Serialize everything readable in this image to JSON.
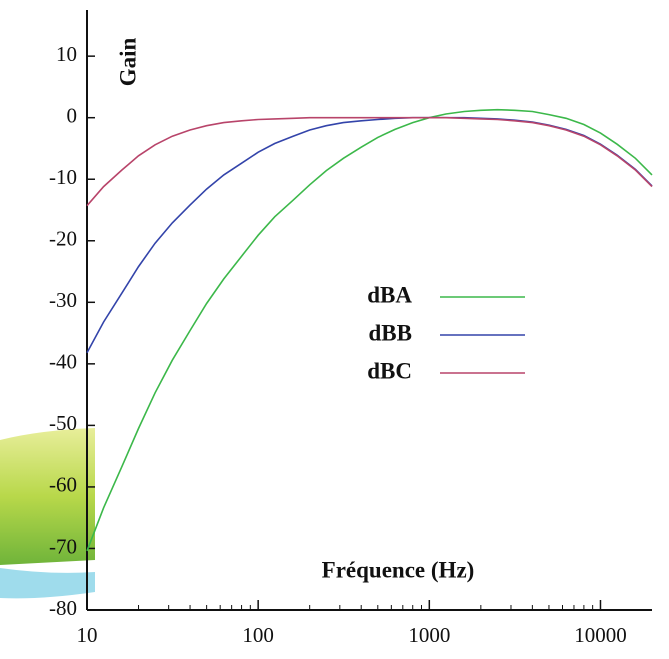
{
  "chart_data": {
    "type": "line",
    "ylabel": "Gain",
    "xlabel": "Fréquence (Hz)",
    "xscale": "log",
    "legend": "center",
    "x": [
      10,
      12.5,
      16,
      20,
      25,
      31.5,
      40,
      50,
      63,
      80,
      100,
      125,
      160,
      200,
      250,
      315,
      400,
      500,
      630,
      800,
      1000,
      1250,
      1600,
      2000,
      2500,
      3150,
      4000,
      5000,
      6300,
      8000,
      10000,
      12500,
      16000,
      20000
    ],
    "series": [
      {
        "name": "dBA",
        "color": "#3cb84a",
        "values": [
          -70.4,
          -63.4,
          -56.7,
          -50.5,
          -44.7,
          -39.4,
          -34.6,
          -30.2,
          -26.2,
          -22.5,
          -19.1,
          -16.1,
          -13.4,
          -10.9,
          -8.6,
          -6.6,
          -4.8,
          -3.2,
          -1.9,
          -0.8,
          0,
          0.6,
          1.0,
          1.2,
          1.3,
          1.2,
          1.0,
          0.5,
          -0.1,
          -1.1,
          -2.5,
          -4.3,
          -6.6,
          -9.3
        ]
      },
      {
        "name": "dBB",
        "color": "#3344aa",
        "values": [
          -38.2,
          -33.2,
          -28.5,
          -24.2,
          -20.4,
          -17.1,
          -14.2,
          -11.6,
          -9.3,
          -7.4,
          -5.6,
          -4.2,
          -3.0,
          -2.0,
          -1.3,
          -0.8,
          -0.5,
          -0.3,
          -0.1,
          0,
          0,
          0,
          0,
          -0.1,
          -0.2,
          -0.4,
          -0.7,
          -1.2,
          -1.9,
          -2.9,
          -4.3,
          -6.1,
          -8.4,
          -11.1
        ]
      },
      {
        "name": "dBC",
        "color": "#b8446a",
        "values": [
          -14.3,
          -11.2,
          -8.5,
          -6.2,
          -4.4,
          -3.0,
          -2.0,
          -1.3,
          -0.8,
          -0.5,
          -0.3,
          -0.2,
          -0.1,
          0,
          0,
          0,
          0,
          0,
          0,
          0,
          0,
          0,
          -0.1,
          -0.2,
          -0.3,
          -0.5,
          -0.8,
          -1.3,
          -2.0,
          -3.0,
          -4.4,
          -6.2,
          -8.5,
          -11.2
        ]
      }
    ],
    "xlim": [
      10,
      20000
    ],
    "xticks": [
      10,
      100,
      1000,
      10000
    ],
    "xminorticks": [
      20,
      30,
      40,
      50,
      60,
      70,
      80,
      90,
      200,
      300,
      400,
      500,
      600,
      700,
      800,
      900,
      2000,
      3000,
      4000,
      5000,
      6000,
      7000,
      8000,
      9000
    ],
    "ylim": [
      -80,
      17.5
    ],
    "yticks": [
      10,
      0,
      -10,
      -20,
      -30,
      -40,
      -50,
      -60,
      -70,
      -80
    ]
  }
}
